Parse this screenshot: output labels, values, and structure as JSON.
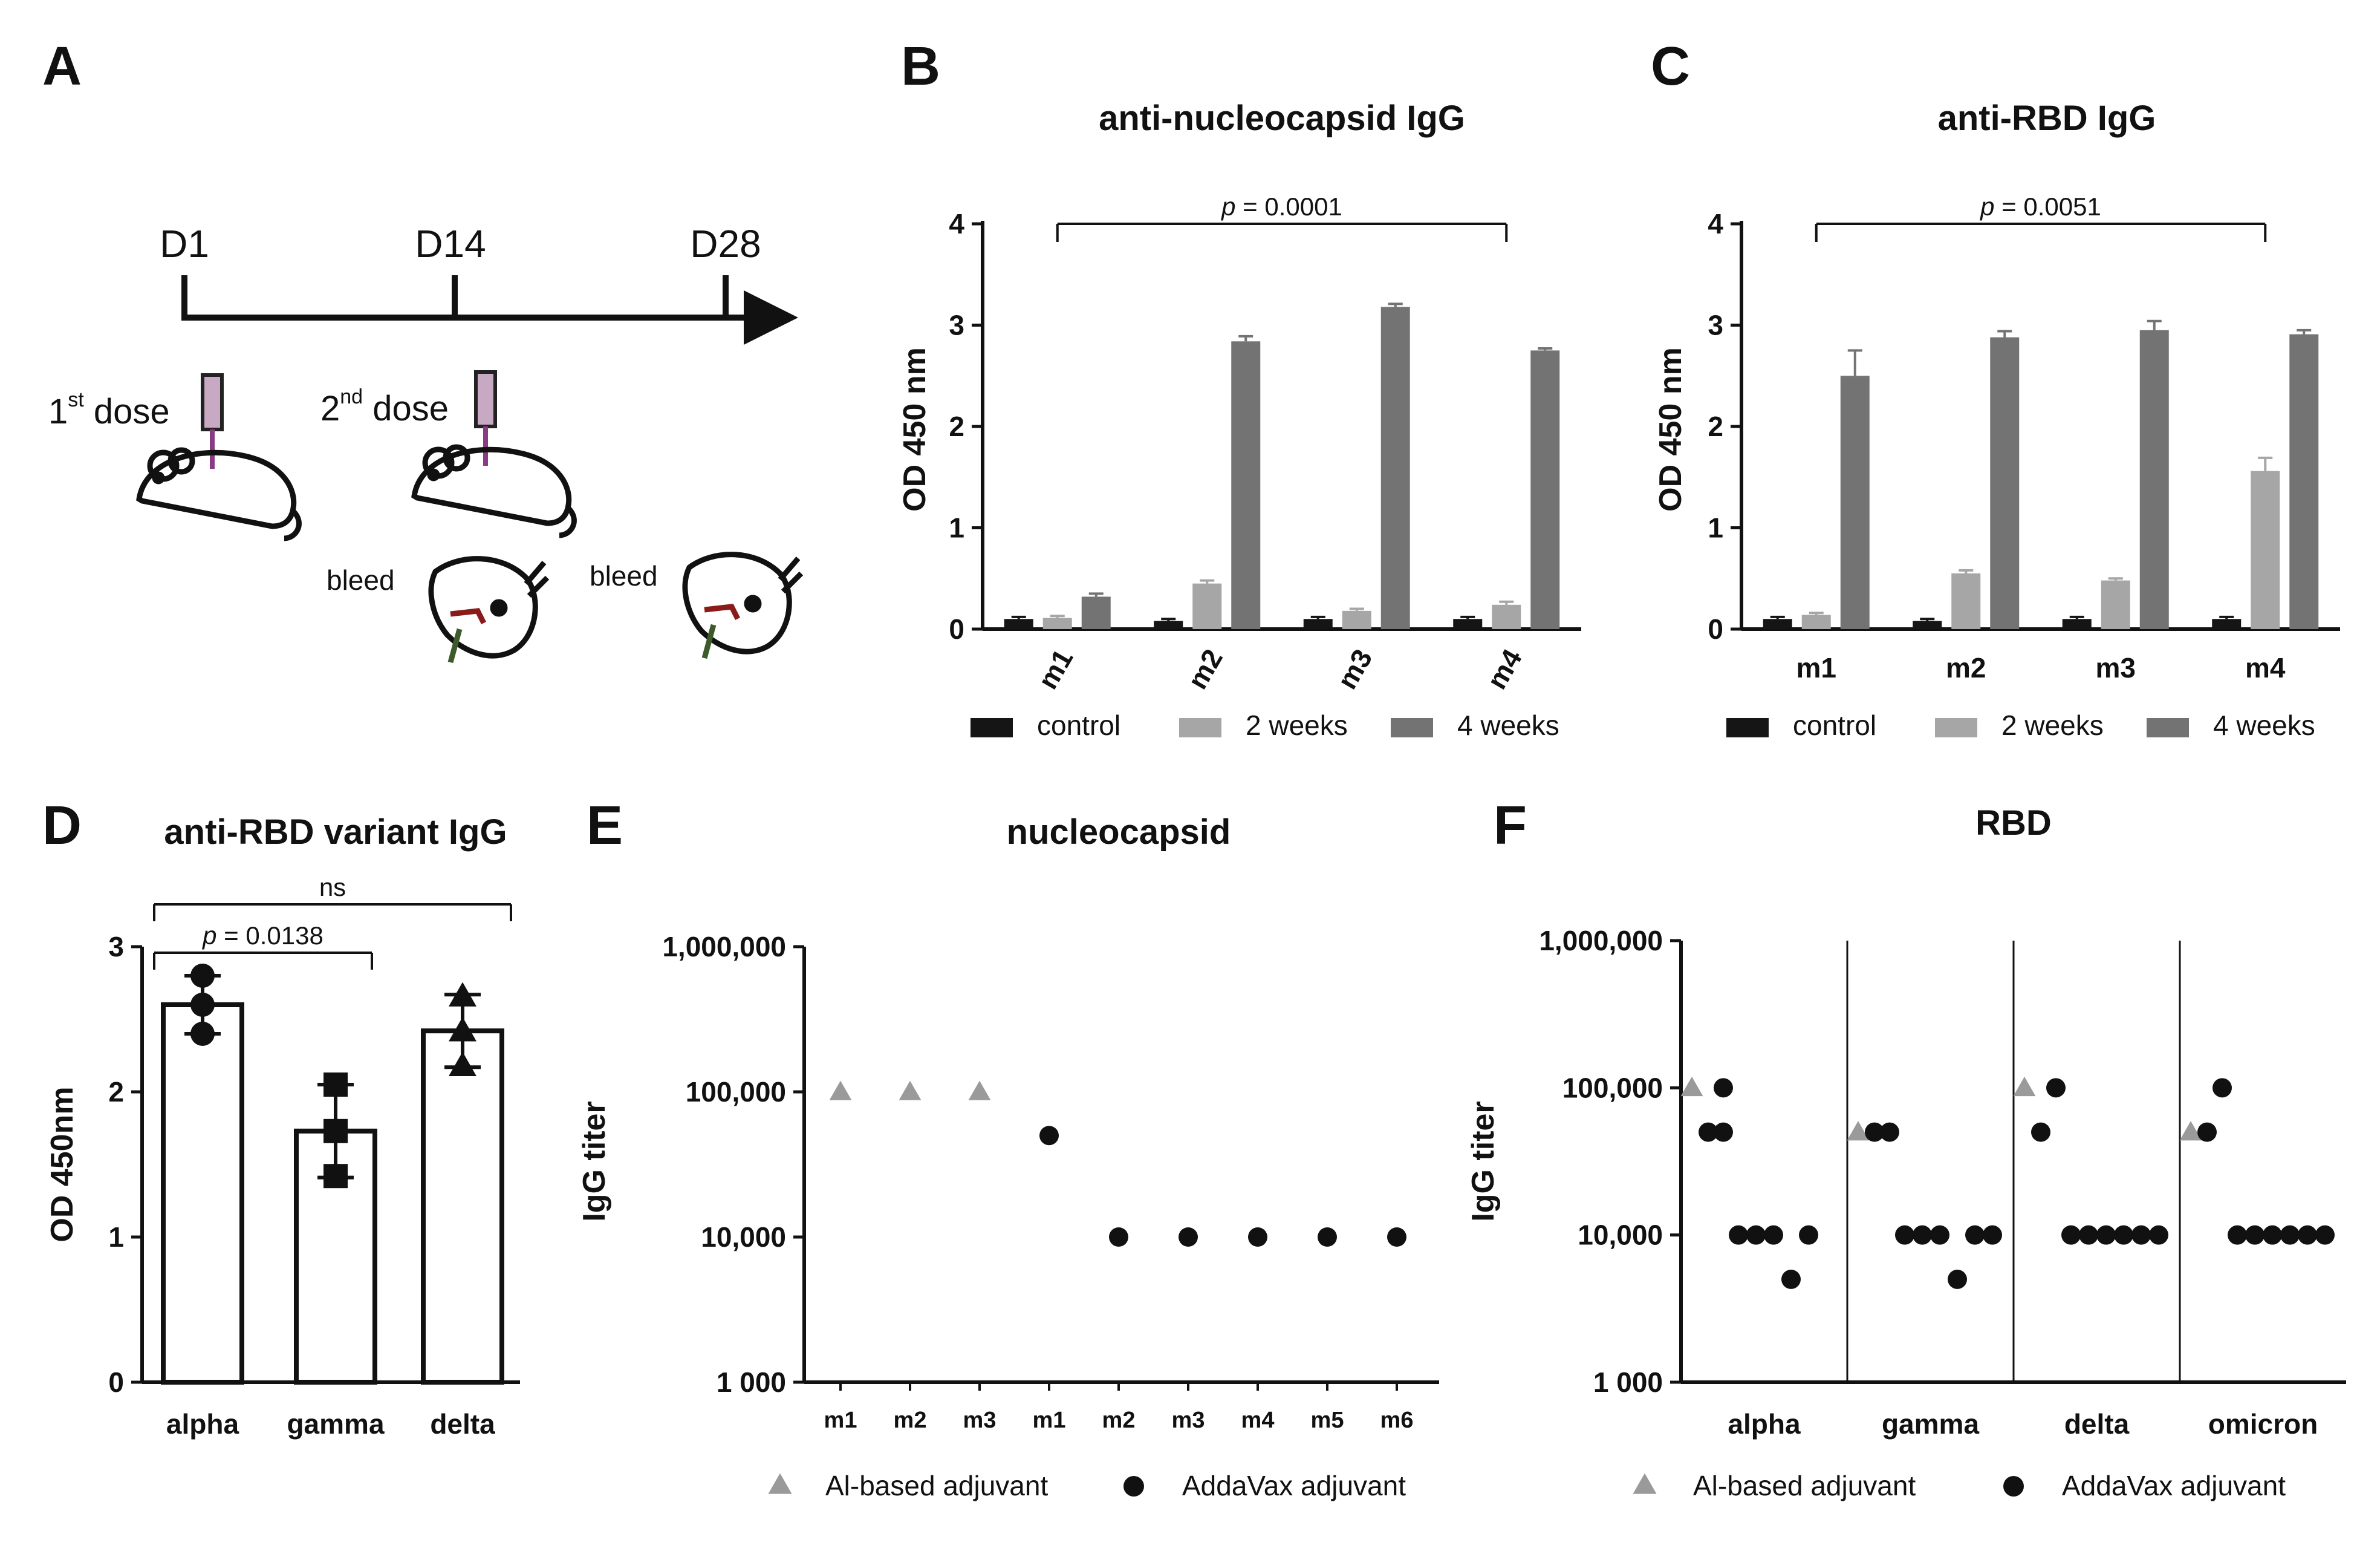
{
  "colors": {
    "control": "#151515",
    "week2": "#a6a6a6",
    "week4": "#737373",
    "al": "#9a9a9a",
    "addavax": "#111111",
    "syringe": "#c8a9c3",
    "needle": "#8a3b86",
    "blood": "#8b1a1a",
    "tool": "#3d5a2a"
  },
  "panelA": {
    "letter": "A",
    "timepoints": [
      "D1",
      "D14",
      "D28"
    ],
    "dose1": {
      "main": "1",
      "sup": "st",
      "rest": " dose"
    },
    "dose2": {
      "main": "2",
      "sup": "nd",
      "rest": " dose"
    },
    "bleed1": "bleed",
    "bleed2": "bleed"
  },
  "chart_data": [
    {
      "panel": "B",
      "type": "bar",
      "title": "anti-nucleocapsid IgG",
      "ylabel": "OD 450 nm",
      "ylim": [
        0,
        4
      ],
      "yticks": [
        "0",
        "1",
        "2",
        "3",
        "4"
      ],
      "categories": [
        "m1",
        "m2",
        "m3",
        "m4"
      ],
      "series": [
        {
          "name": "control",
          "values": [
            0.1,
            0.08,
            0.1,
            0.1
          ],
          "errors": [
            0.02,
            0.02,
            0.02,
            0.02
          ]
        },
        {
          "name": "2 weeks",
          "values": [
            0.11,
            0.45,
            0.18,
            0.24
          ],
          "errors": [
            0.02,
            0.03,
            0.02,
            0.03
          ]
        },
        {
          "name": "4 weeks",
          "values": [
            0.32,
            2.84,
            3.18,
            2.75
          ],
          "errors": [
            0.03,
            0.05,
            0.03,
            0.02
          ]
        }
      ],
      "pvalue": {
        "label": "p",
        "text": " = 0.0001",
        "from": "m1",
        "to": "m4"
      },
      "legend_position": "bottom"
    },
    {
      "panel": "C",
      "type": "bar",
      "title": "anti-RBD IgG",
      "ylabel": "OD 450 nm",
      "ylim": [
        0,
        4
      ],
      "yticks": [
        "0",
        "1",
        "2",
        "3",
        "4"
      ],
      "categories": [
        "m1",
        "m2",
        "m3",
        "m4"
      ],
      "series": [
        {
          "name": "control",
          "values": [
            0.1,
            0.08,
            0.1,
            0.1
          ],
          "errors": [
            0.02,
            0.02,
            0.02,
            0.02
          ]
        },
        {
          "name": "2 weeks",
          "values": [
            0.14,
            0.55,
            0.48,
            1.56
          ],
          "errors": [
            0.02,
            0.03,
            0.02,
            0.13
          ]
        },
        {
          "name": "4 weeks",
          "values": [
            2.5,
            2.88,
            2.95,
            2.91
          ],
          "errors": [
            0.25,
            0.06,
            0.09,
            0.04
          ]
        }
      ],
      "pvalue": {
        "label": "p",
        "text": " = 0.0051",
        "from": "m1",
        "to": "m4"
      },
      "legend_position": "bottom"
    },
    {
      "panel": "D",
      "type": "bar",
      "title": "anti-RBD variant IgG",
      "ylabel": "OD 450nm",
      "ylim": [
        0,
        3
      ],
      "yticks": [
        "0",
        "1",
        "2",
        "3"
      ],
      "categories": [
        "alpha",
        "gamma",
        "delta"
      ],
      "values": [
        2.6,
        1.73,
        2.42
      ],
      "errors": [
        0.2,
        0.32,
        0.25
      ],
      "points": [
        [
          2.8,
          2.6,
          2.4
        ],
        [
          2.05,
          1.73,
          1.42
        ],
        [
          2.66,
          2.42,
          2.18
        ]
      ],
      "markers": [
        "circle",
        "square",
        "triangle"
      ],
      "comparisons": [
        {
          "from": "alpha",
          "to": "gamma",
          "label": "p",
          "text": " = 0.0138"
        },
        {
          "from": "alpha",
          "to": "delta",
          "text": "ns"
        }
      ]
    },
    {
      "panel": "E",
      "type": "scatter",
      "title": "nucleocapsid",
      "ylabel": "IgG titer",
      "yscale": "log",
      "ylim": [
        1000,
        1000000
      ],
      "yticks": [
        "1 000",
        "10,000",
        "100,000",
        "1,000,000"
      ],
      "categories": [
        "m1",
        "m2",
        "m3",
        "m1",
        "m2",
        "m3",
        "m4",
        "m5",
        "m6"
      ],
      "groups": [
        "Al",
        "Al",
        "Al",
        "AddaVax",
        "AddaVax",
        "AddaVax",
        "AddaVax",
        "AddaVax",
        "AddaVax"
      ],
      "values": [
        100000,
        100000,
        100000,
        50000,
        10000,
        10000,
        10000,
        10000,
        10000
      ],
      "legend": [
        "Al-based adjuvant",
        "AddaVax adjuvant"
      ]
    },
    {
      "panel": "F",
      "type": "scatter",
      "title": "RBD",
      "ylabel": "IgG titer",
      "yscale": "log",
      "ylim": [
        1000,
        1000000
      ],
      "yticks": [
        "1 000",
        "10,000",
        "100,000",
        "1,000,000"
      ],
      "categories": [
        "alpha",
        "gamma",
        "delta",
        "omicron"
      ],
      "al_values": [
        100000,
        50000,
        100000,
        50000
      ],
      "addavax_values": [
        [
          50000,
          100000,
          10000,
          10000,
          10000,
          5000,
          10000,
          50000
        ],
        [
          50000,
          50000,
          10000,
          10000,
          10000,
          5000,
          10000,
          10000
        ],
        [
          50000,
          100000,
          10000,
          10000,
          10000,
          10000,
          10000,
          10000
        ],
        [
          50000,
          100000,
          10000,
          10000,
          10000,
          10000,
          10000,
          10000
        ]
      ],
      "legend": [
        "Al-based adjuvant",
        "AddaVax adjuvant"
      ]
    }
  ]
}
